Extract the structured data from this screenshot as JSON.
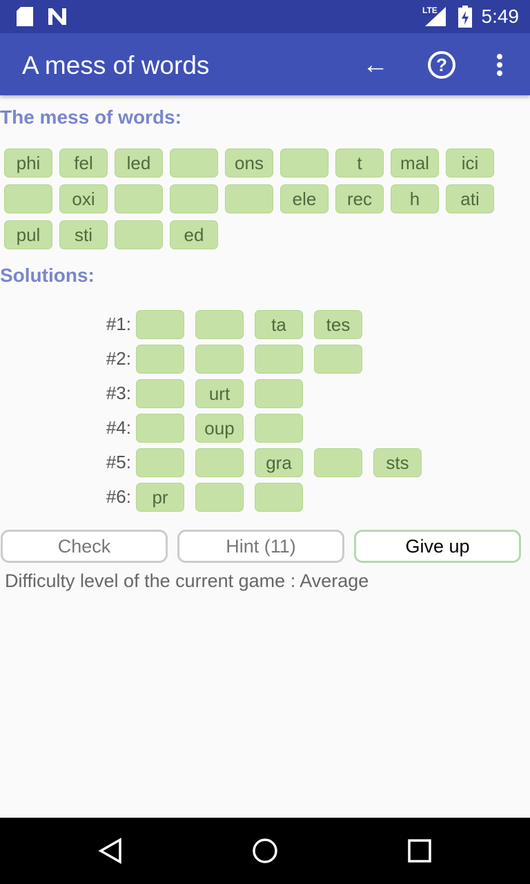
{
  "status_bar": {
    "time": "5:49",
    "network": "LTE"
  },
  "app_bar": {
    "title": "A mess of words",
    "icons": [
      "back-arrow-icon",
      "help-icon",
      "more-vert-icon"
    ]
  },
  "mess": {
    "heading": "The mess of words:",
    "tiles": [
      "phi",
      "fel",
      "led",
      "",
      "ons",
      "",
      "t",
      "mal",
      "ici",
      "",
      "oxi",
      "",
      "",
      "",
      "ele",
      "rec",
      "h",
      "ati",
      "pul",
      "sti",
      "",
      "ed"
    ]
  },
  "solutions": {
    "heading": "Solutions:",
    "rows": [
      {
        "label": "#1:",
        "tiles": [
          "",
          "",
          "ta",
          "tes"
        ]
      },
      {
        "label": "#2:",
        "tiles": [
          "",
          "",
          "",
          ""
        ]
      },
      {
        "label": "#3:",
        "tiles": [
          "",
          "urt",
          ""
        ]
      },
      {
        "label": "#4:",
        "tiles": [
          "",
          "oup",
          ""
        ]
      },
      {
        "label": "#5:",
        "tiles": [
          "",
          "",
          "gra",
          "",
          "sts"
        ]
      },
      {
        "label": "#6:",
        "tiles": [
          "pr",
          "",
          ""
        ]
      }
    ]
  },
  "buttons": {
    "check": "Check",
    "hint": "Hint (11)",
    "give_up": "Give up"
  },
  "difficulty": "Difficulty level of the current game : Average",
  "colors": {
    "app_bar": "#3f51b5",
    "tile": "#c5e1a5",
    "heading": "#7986cb"
  }
}
